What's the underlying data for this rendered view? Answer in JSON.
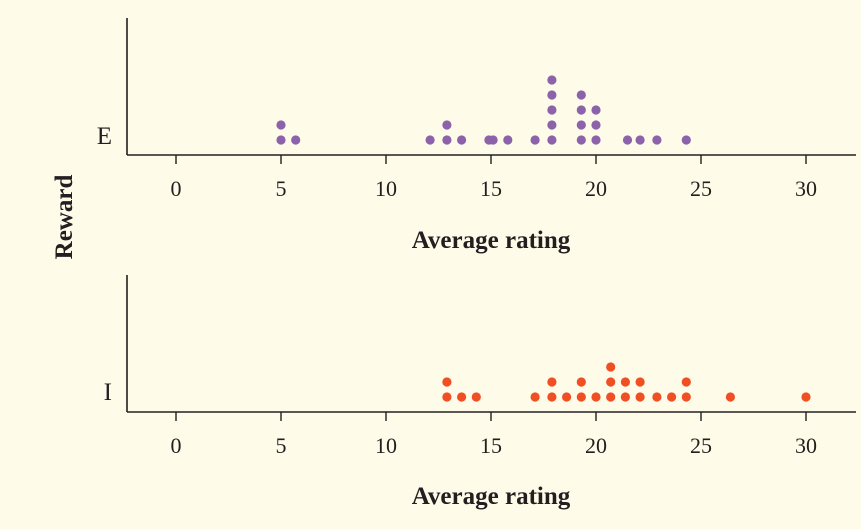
{
  "figure": {
    "y_axis_title": "Reward",
    "background": "#fefbe9"
  },
  "chart_data": [
    {
      "type": "scatter",
      "subtype": "dotplot",
      "category": "E",
      "xlabel": "Average rating",
      "ylabel": "Reward",
      "xlim": [
        -2.3,
        32.5
      ],
      "xticks": [
        0,
        5,
        10,
        15,
        20,
        25,
        30
      ],
      "grid": false,
      "color": "#8c62ab",
      "values": [
        5.0,
        5.0,
        5.7,
        12.1,
        12.9,
        12.9,
        13.6,
        14.9,
        15.1,
        15.8,
        17.1,
        17.9,
        17.9,
        17.9,
        17.9,
        17.9,
        19.3,
        19.3,
        19.3,
        19.3,
        20.0,
        20.0,
        20.0,
        21.5,
        22.1,
        22.9,
        24.3
      ]
    },
    {
      "type": "scatter",
      "subtype": "dotplot",
      "category": "I",
      "xlabel": "Average rating",
      "ylabel": "Reward",
      "xlim": [
        -2.3,
        32.5
      ],
      "xticks": [
        0,
        5,
        10,
        15,
        20,
        25,
        30
      ],
      "grid": false,
      "color": "#f04e23",
      "values": [
        12.9,
        12.9,
        13.6,
        14.3,
        17.1,
        17.9,
        17.9,
        18.6,
        19.3,
        19.3,
        20.0,
        20.7,
        20.7,
        20.7,
        21.4,
        21.4,
        22.1,
        22.1,
        22.9,
        23.6,
        24.3,
        24.3,
        26.4,
        30.0
      ]
    }
  ]
}
